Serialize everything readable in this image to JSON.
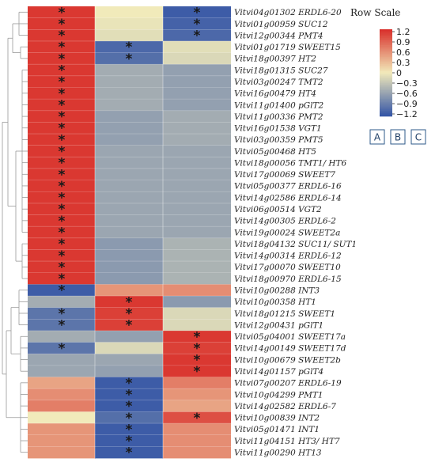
{
  "chart_data": {
    "type": "heatmap",
    "legend_title": "Row Scale",
    "legend_ticks": [
      "1.2",
      "0.9",
      "0.6",
      "0.3",
      "0",
      "−0.3",
      "−0.6",
      "−0.9",
      "−1.2"
    ],
    "color_range": [
      -1.2,
      1.2
    ],
    "colors": {
      "low": "#3556a6",
      "mid": "#f1eaba",
      "high": "#d9302b"
    },
    "columns": [
      "A",
      "B",
      "C"
    ],
    "rows": [
      {
        "gene": "Vitvi04g01302 ERDL6-20",
        "values": [
          1.15,
          0.0,
          -1.15
        ],
        "sig": [
          true,
          false,
          true
        ]
      },
      {
        "gene": "Vitvi01g00959 SUC12",
        "values": [
          1.15,
          -0.05,
          -1.1
        ],
        "sig": [
          true,
          false,
          true
        ]
      },
      {
        "gene": "Vitvi12g00344 PMT4",
        "values": [
          1.15,
          -0.1,
          -1.05
        ],
        "sig": [
          true,
          false,
          true
        ]
      },
      {
        "gene": "Vitvi01g01719 SWEET15",
        "values": [
          1.15,
          -1.05,
          -0.1
        ],
        "sig": [
          true,
          true,
          false
        ]
      },
      {
        "gene": "Vitvi18g00397 HT2",
        "values": [
          1.15,
          -1.0,
          -0.15
        ],
        "sig": [
          true,
          true,
          false
        ]
      },
      {
        "gene": "Vitvi18g01315 SUC27",
        "values": [
          1.15,
          -0.5,
          -0.6
        ],
        "sig": [
          true,
          false,
          false
        ]
      },
      {
        "gene": "Vitvi03g00247 TMT2",
        "values": [
          1.15,
          -0.5,
          -0.6
        ],
        "sig": [
          true,
          false,
          false
        ]
      },
      {
        "gene": "Vitvi16g00479 HT4",
        "values": [
          1.15,
          -0.5,
          -0.6
        ],
        "sig": [
          true,
          false,
          false
        ]
      },
      {
        "gene": "Vitvi11g01400 pGlT2",
        "values": [
          1.15,
          -0.5,
          -0.6
        ],
        "sig": [
          true,
          false,
          false
        ]
      },
      {
        "gene": "Vitvi11g00336 PMT2",
        "values": [
          1.15,
          -0.6,
          -0.5
        ],
        "sig": [
          true,
          false,
          false
        ]
      },
      {
        "gene": "Vitvi16g01538 VGT1",
        "values": [
          1.15,
          -0.6,
          -0.5
        ],
        "sig": [
          true,
          false,
          false
        ]
      },
      {
        "gene": "Vitvi03g00359 PMT5",
        "values": [
          1.15,
          -0.6,
          -0.5
        ],
        "sig": [
          true,
          false,
          false
        ]
      },
      {
        "gene": "Vitvi05g00468 HT5",
        "values": [
          1.15,
          -0.55,
          -0.55
        ],
        "sig": [
          true,
          false,
          false
        ]
      },
      {
        "gene": "Vitvi18g00056 TMT1/ HT6",
        "values": [
          1.15,
          -0.55,
          -0.55
        ],
        "sig": [
          true,
          false,
          false
        ]
      },
      {
        "gene": "Vitvi17g00069 SWEET7",
        "values": [
          1.15,
          -0.55,
          -0.55
        ],
        "sig": [
          true,
          false,
          false
        ]
      },
      {
        "gene": "Vitvi05g00377 ERDL6-16",
        "values": [
          1.15,
          -0.55,
          -0.55
        ],
        "sig": [
          true,
          false,
          false
        ]
      },
      {
        "gene": "Vitvi14g02586 ERDL6-14",
        "values": [
          1.15,
          -0.55,
          -0.55
        ],
        "sig": [
          true,
          false,
          false
        ]
      },
      {
        "gene": "Vitvi06g00514 VGT2",
        "values": [
          1.15,
          -0.55,
          -0.55
        ],
        "sig": [
          true,
          false,
          false
        ]
      },
      {
        "gene": "Vitvi14g00305 ERDL6-2",
        "values": [
          1.15,
          -0.55,
          -0.55
        ],
        "sig": [
          true,
          false,
          false
        ]
      },
      {
        "gene": "Vitvi19g00024 SWEET2a",
        "values": [
          1.15,
          -0.55,
          -0.55
        ],
        "sig": [
          true,
          false,
          false
        ]
      },
      {
        "gene": "Vitvi18g04132 SUC11/ SUT1",
        "values": [
          1.15,
          -0.65,
          -0.45
        ],
        "sig": [
          true,
          false,
          false
        ]
      },
      {
        "gene": "Vitvi14g00314 ERDL6-12",
        "values": [
          1.15,
          -0.65,
          -0.45
        ],
        "sig": [
          true,
          false,
          false
        ]
      },
      {
        "gene": "Vitvi17g00070 SWEET10",
        "values": [
          1.15,
          -0.65,
          -0.45
        ],
        "sig": [
          true,
          false,
          false
        ]
      },
      {
        "gene": "Vitvi18g00970 ERDL6-15",
        "values": [
          1.15,
          -0.65,
          -0.45
        ],
        "sig": [
          true,
          false,
          false
        ]
      },
      {
        "gene": "Vitvi10g00288 INT3",
        "values": [
          -1.15,
          0.55,
          0.6
        ],
        "sig": [
          true,
          false,
          false
        ]
      },
      {
        "gene": "Vitvi10g00358 HT1",
        "values": [
          -0.5,
          1.15,
          -0.65
        ],
        "sig": [
          false,
          true,
          false
        ]
      },
      {
        "gene": "Vitvi18g01215 SWEET1",
        "values": [
          -0.95,
          1.1,
          -0.15
        ],
        "sig": [
          true,
          true,
          false
        ]
      },
      {
        "gene": "Vitvi12g00431 pGlT1",
        "values": [
          -0.95,
          1.1,
          -0.15
        ],
        "sig": [
          true,
          true,
          false
        ]
      },
      {
        "gene": "Vitvi05g04001 SWEET17a",
        "values": [
          -0.5,
          -0.6,
          1.15
        ],
        "sig": [
          false,
          false,
          true
        ]
      },
      {
        "gene": "Vitvi14g00149 SWEET17d",
        "values": [
          -0.95,
          -0.15,
          1.1
        ],
        "sig": [
          true,
          false,
          true
        ]
      },
      {
        "gene": "Vitvi10g00679 SWEET2b",
        "values": [
          -0.55,
          -0.55,
          1.15
        ],
        "sig": [
          false,
          false,
          true
        ]
      },
      {
        "gene": "Vitvi14g01157 pGlT4",
        "values": [
          -0.55,
          -0.6,
          1.15
        ],
        "sig": [
          false,
          false,
          true
        ]
      },
      {
        "gene": "Vitvi07g00207 ERDL6-19",
        "values": [
          0.45,
          -1.15,
          0.7
        ],
        "sig": [
          false,
          true,
          false
        ]
      },
      {
        "gene": "Vitvi10g04299 PMT1",
        "values": [
          0.6,
          -1.15,
          0.55
        ],
        "sig": [
          false,
          true,
          false
        ]
      },
      {
        "gene": "Vitvi14g02582 ERDL6-7",
        "values": [
          0.7,
          -1.15,
          0.45
        ],
        "sig": [
          false,
          true,
          false
        ]
      },
      {
        "gene": "Vitvi10g00839 INT2",
        "values": [
          0.0,
          -1.0,
          1.0
        ],
        "sig": [
          false,
          true,
          true
        ]
      },
      {
        "gene": "Vitvi05g01471 INT1",
        "values": [
          0.55,
          -1.15,
          0.6
        ],
        "sig": [
          false,
          true,
          false
        ]
      },
      {
        "gene": "Vitvi11g04151 HT3/ HT7",
        "values": [
          0.55,
          -1.15,
          0.6
        ],
        "sig": [
          false,
          true,
          false
        ]
      },
      {
        "gene": "Vitvi11g00290 HT13",
        "values": [
          0.55,
          -1.15,
          0.6
        ],
        "sig": [
          false,
          true,
          false
        ]
      }
    ]
  }
}
